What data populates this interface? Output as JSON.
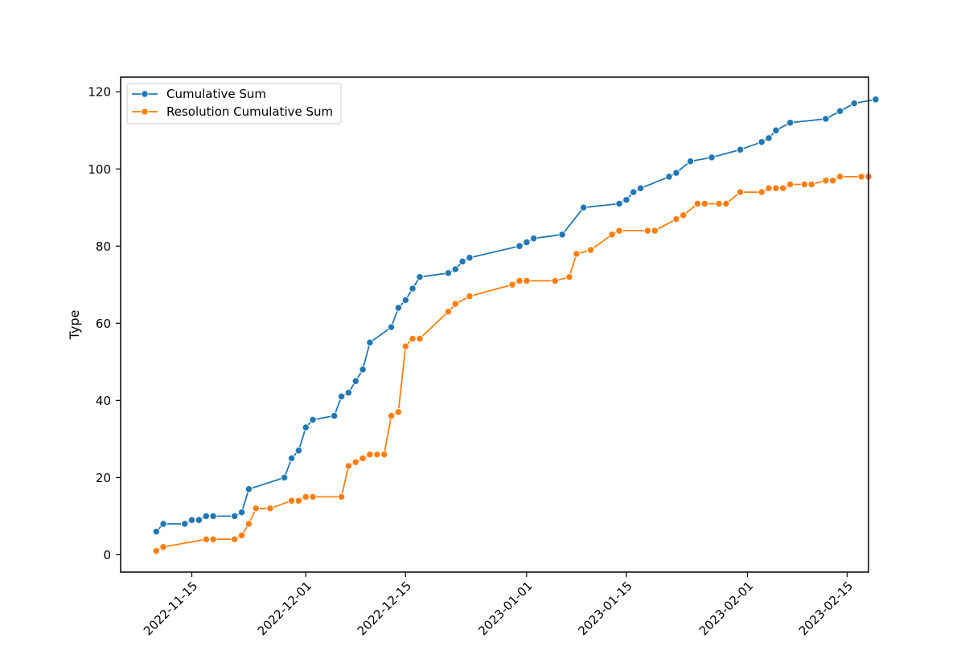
{
  "chart_data": {
    "type": "line",
    "title": "",
    "xlabel": "",
    "ylabel": "Type",
    "x_axis": {
      "kind": "date",
      "range": [
        "2022-11-05",
        "2023-02-18"
      ],
      "ticks": [
        "2022-11-15",
        "2022-12-01",
        "2022-12-15",
        "2023-01-01",
        "2023-01-15",
        "2023-02-01",
        "2023-02-15"
      ]
    },
    "y_axis": {
      "range": [
        -4.5,
        123.8
      ],
      "ticks": [
        0,
        20,
        40,
        60,
        80,
        100,
        120
      ]
    },
    "grid": false,
    "legend": "top-left",
    "series": [
      {
        "name": "Cumulative Sum",
        "color": "#1f77b4",
        "points": [
          [
            "2022-11-10",
            6
          ],
          [
            "2022-11-11",
            8
          ],
          [
            "2022-11-14",
            8
          ],
          [
            "2022-11-15",
            9
          ],
          [
            "2022-11-16",
            9
          ],
          [
            "2022-11-17",
            10
          ],
          [
            "2022-11-18",
            10
          ],
          [
            "2022-11-21",
            10
          ],
          [
            "2022-11-22",
            11
          ],
          [
            "2022-11-23",
            17
          ],
          [
            "2022-11-28",
            20
          ],
          [
            "2022-11-29",
            25
          ],
          [
            "2022-11-30",
            27
          ],
          [
            "2022-12-01",
            33
          ],
          [
            "2022-12-02",
            35
          ],
          [
            "2022-12-05",
            36
          ],
          [
            "2022-12-06",
            41
          ],
          [
            "2022-12-07",
            42
          ],
          [
            "2022-12-08",
            45
          ],
          [
            "2022-12-09",
            48
          ],
          [
            "2022-12-10",
            55
          ],
          [
            "2022-12-13",
            59
          ],
          [
            "2022-12-14",
            64
          ],
          [
            "2022-12-15",
            66
          ],
          [
            "2022-12-16",
            69
          ],
          [
            "2022-12-17",
            72
          ],
          [
            "2022-12-21",
            73
          ],
          [
            "2022-12-22",
            74
          ],
          [
            "2022-12-23",
            76
          ],
          [
            "2022-12-24",
            77
          ],
          [
            "2022-12-31",
            80
          ],
          [
            "2023-01-01",
            81
          ],
          [
            "2023-01-02",
            82
          ],
          [
            "2023-01-06",
            83
          ],
          [
            "2023-01-09",
            90
          ],
          [
            "2023-01-14",
            91
          ],
          [
            "2023-01-15",
            92
          ],
          [
            "2023-01-16",
            94
          ],
          [
            "2023-01-17",
            95
          ],
          [
            "2023-01-21",
            98
          ],
          [
            "2023-01-22",
            99
          ],
          [
            "2023-01-24",
            102
          ],
          [
            "2023-01-27",
            103
          ],
          [
            "2023-01-31",
            105
          ],
          [
            "2023-02-03",
            107
          ],
          [
            "2023-02-04",
            108
          ],
          [
            "2023-02-05",
            110
          ],
          [
            "2023-02-07",
            112
          ],
          [
            "2023-02-12",
            113
          ],
          [
            "2023-02-14",
            115
          ],
          [
            "2023-02-16",
            117
          ],
          [
            "2023-02-19",
            118
          ]
        ]
      },
      {
        "name": "Resolution Cumulative Sum",
        "color": "#ff7f0e",
        "points": [
          [
            "2022-11-10",
            1
          ],
          [
            "2022-11-11",
            2
          ],
          [
            "2022-11-17",
            4
          ],
          [
            "2022-11-18",
            4
          ],
          [
            "2022-11-21",
            4
          ],
          [
            "2022-11-22",
            5
          ],
          [
            "2022-11-23",
            8
          ],
          [
            "2022-11-24",
            12
          ],
          [
            "2022-11-26",
            12
          ],
          [
            "2022-11-29",
            14
          ],
          [
            "2022-11-30",
            14
          ],
          [
            "2022-12-01",
            15
          ],
          [
            "2022-12-02",
            15
          ],
          [
            "2022-12-06",
            15
          ],
          [
            "2022-12-07",
            23
          ],
          [
            "2022-12-08",
            24
          ],
          [
            "2022-12-09",
            25
          ],
          [
            "2022-12-10",
            26
          ],
          [
            "2022-12-11",
            26
          ],
          [
            "2022-12-12",
            26
          ],
          [
            "2022-12-13",
            36
          ],
          [
            "2022-12-14",
            37
          ],
          [
            "2022-12-15",
            54
          ],
          [
            "2022-12-16",
            56
          ],
          [
            "2022-12-17",
            56
          ],
          [
            "2022-12-21",
            63
          ],
          [
            "2022-12-22",
            65
          ],
          [
            "2022-12-24",
            67
          ],
          [
            "2022-12-30",
            70
          ],
          [
            "2022-12-31",
            71
          ],
          [
            "2023-01-01",
            71
          ],
          [
            "2023-01-05",
            71
          ],
          [
            "2023-01-07",
            72
          ],
          [
            "2023-01-08",
            78
          ],
          [
            "2023-01-10",
            79
          ],
          [
            "2023-01-13",
            83
          ],
          [
            "2023-01-14",
            84
          ],
          [
            "2023-01-18",
            84
          ],
          [
            "2023-01-19",
            84
          ],
          [
            "2023-01-22",
            87
          ],
          [
            "2023-01-23",
            88
          ],
          [
            "2023-01-25",
            91
          ],
          [
            "2023-01-26",
            91
          ],
          [
            "2023-01-28",
            91
          ],
          [
            "2023-01-29",
            91
          ],
          [
            "2023-01-31",
            94
          ],
          [
            "2023-02-03",
            94
          ],
          [
            "2023-02-04",
            95
          ],
          [
            "2023-02-05",
            95
          ],
          [
            "2023-02-06",
            95
          ],
          [
            "2023-02-07",
            96
          ],
          [
            "2023-02-09",
            96
          ],
          [
            "2023-02-10",
            96
          ],
          [
            "2023-02-12",
            97
          ],
          [
            "2023-02-13",
            97
          ],
          [
            "2023-02-14",
            98
          ],
          [
            "2023-02-17",
            98
          ],
          [
            "2023-02-18",
            98
          ]
        ]
      }
    ]
  }
}
